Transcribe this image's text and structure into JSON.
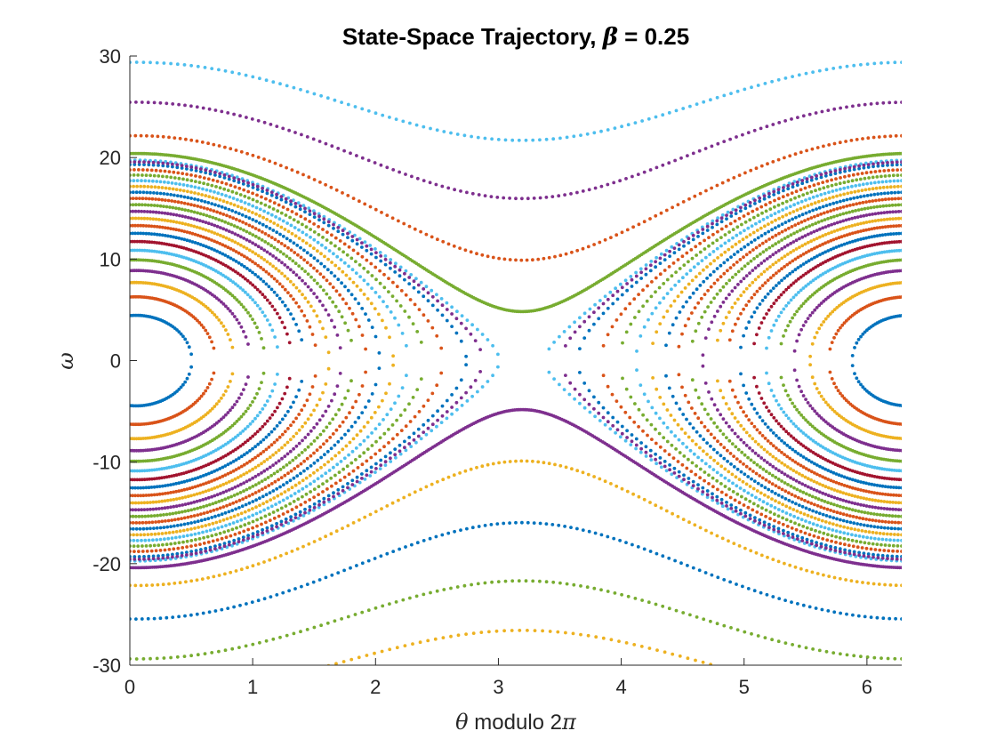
{
  "chart_data": {
    "type": "scatter",
    "title": {
      "prefix": "State-Space Trajectory, ",
      "symbol": "β",
      "suffix": " = 0.25"
    },
    "xlabel": {
      "symbol": "θ",
      "text": " modulo 2",
      "symbol2": "π"
    },
    "ylabel": {
      "symbol": "ω"
    },
    "xlim": [
      0,
      6.2832
    ],
    "ylim": [
      -30,
      30
    ],
    "xticks": [
      0,
      1,
      2,
      3,
      4,
      5,
      6
    ],
    "xtick_labels": [
      "0",
      "1",
      "2",
      "3",
      "4",
      "5",
      "6"
    ],
    "yticks": [
      -30,
      -20,
      -10,
      0,
      10,
      20,
      30
    ],
    "ytick_labels": [
      "-30",
      "-20",
      "-10",
      "0",
      "10",
      "20",
      "30"
    ],
    "grid": false,
    "legend": "none",
    "beta": 0.25,
    "palette": [
      "#0072BD",
      "#D95319",
      "#EDB120",
      "#7E2F8E",
      "#77AC30",
      "#4DBEEE",
      "#A2142F"
    ],
    "series": [
      {
        "energy": 0.9,
        "color": "#0072BD",
        "dots_per_rad": 60
      },
      {
        "energy": 0.8,
        "color": "#D95319",
        "dots_per_rad": 60
      },
      {
        "energy": 0.7,
        "color": "#EDB120",
        "dots_per_rad": 55
      },
      {
        "energy": 0.6,
        "color": "#7E2F8E",
        "dots_per_rad": 55
      },
      {
        "energy": 0.5,
        "color": "#77AC30",
        "dots_per_rad": 55
      },
      {
        "energy": 0.4,
        "color": "#4DBEEE",
        "dots_per_rad": 50
      },
      {
        "energy": 0.3,
        "color": "#A2142F",
        "dots_per_rad": 50
      },
      {
        "energy": 0.2,
        "color": "#0072BD",
        "dots_per_rad": 45
      },
      {
        "energy": 0.1,
        "color": "#D95319",
        "dots_per_rad": 45
      },
      {
        "energy": 0.0,
        "color": "#EDB120",
        "dots_per_rad": 42
      },
      {
        "energy": -0.1,
        "color": "#7E2F8E",
        "dots_per_rad": 42
      },
      {
        "energy": -0.2,
        "color": "#77AC30",
        "dots_per_rad": 40
      },
      {
        "energy": -0.3,
        "color": "#D95319",
        "dots_per_rad": 38
      },
      {
        "energy": -0.4,
        "color": "#0072BD",
        "dots_per_rad": 36
      },
      {
        "energy": -0.5,
        "color": "#EDB120",
        "dots_per_rad": 34
      },
      {
        "energy": -0.6,
        "color": "#4DBEEE",
        "dots_per_rad": 32
      },
      {
        "energy": -0.7,
        "color": "#77AC30",
        "dots_per_rad": 30
      },
      {
        "energy": -0.8,
        "color": "#D95319",
        "dots_per_rad": 28
      },
      {
        "energy": -0.9,
        "color": "#0072BD",
        "dots_per_rad": 26
      },
      {
        "energy": -0.984,
        "color": "#4DBEEE",
        "dots_per_rad": 24
      },
      {
        "energy": -0.95,
        "color": "#7E2F8E",
        "dots_per_rad": 26
      },
      {
        "energy": -1.12,
        "color": "#77AC30",
        "dots_per_rad": 60
      },
      {
        "energy": -1.5,
        "color": "#D95319",
        "dots_per_rad": 22
      },
      {
        "energy": -2.3,
        "color": "#7E2F8E",
        "dots_per_rad": 20
      },
      {
        "energy": -3.4,
        "color": "#4DBEEE",
        "dots_per_rad": 18
      },
      {
        "energy": -1.12,
        "color": "#7E2F8E",
        "dots_per_rad": 60,
        "lower": true
      },
      {
        "energy": -1.5,
        "color": "#EDB120",
        "dots_per_rad": 22,
        "lower": true
      },
      {
        "energy": -2.3,
        "color": "#0072BD",
        "dots_per_rad": 20,
        "lower": true
      },
      {
        "energy": -3.4,
        "color": "#77AC30",
        "dots_per_rad": 18,
        "lower": true
      },
      {
        "energy": -4.6,
        "color": "#EDB120",
        "dots_per_rad": 16,
        "lower": true
      }
    ]
  }
}
